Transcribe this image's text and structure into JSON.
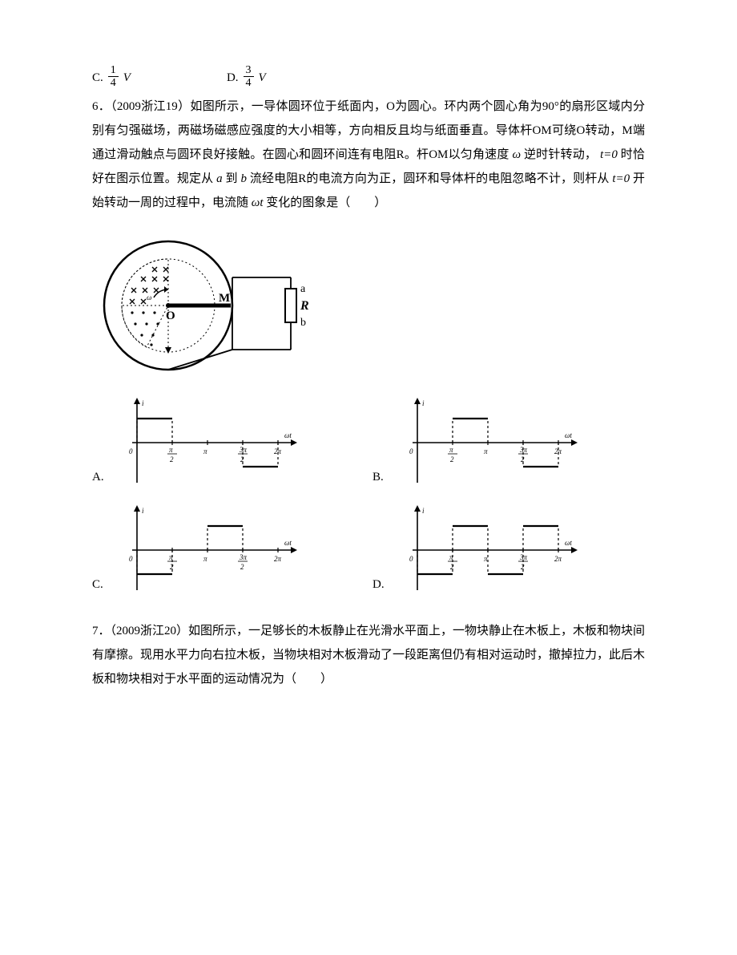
{
  "q5_options": {
    "C": {
      "label": "C.",
      "num": "1",
      "den": "4",
      "suffix": "V"
    },
    "D": {
      "label": "D.",
      "num": "3",
      "den": "4",
      "suffix": "V"
    }
  },
  "q6": {
    "heading": "6．（2009浙江19）如图所示，一导体圆环位于纸面内，O为圆心。环内两个圆心角为90°的扇形区域内分别有匀强磁场，两磁场磁感应强度的大小相等，方向相反且均与纸面垂直。导体杆OM可绕O转动，M端通过滑动触点与圆环良好接触。在圆心和圆环间连有电阻R。杆OM以匀角速度",
    "heading2": "逆时针转动，",
    "heading3": "时恰好在图示位置。规定从",
    "heading4": "到",
    "heading5": "流经电阻R的电流方向为正，圆环和导体杆的电阻忽略不计，则杆从",
    "heading6": "开始转动一周的过程中，电流随",
    "heading7": "变化的图象是（　　）",
    "omega": "ω",
    "t0": "t=0",
    "a": "a",
    "b": "b",
    "wt": "ωt",
    "circuit": {
      "ring_stroke": "#000000",
      "label_O": "O",
      "label_M": "M",
      "label_a": "a",
      "label_b": "b",
      "label_R": "R",
      "label_omega": "ω"
    },
    "graphs": {
      "axis_i": "i",
      "axis_wt": "ωt",
      "ticks": [
        "0",
        "π/2",
        "π",
        "3π/2",
        "2π"
      ],
      "A": {
        "label": "A.",
        "segments": [
          {
            "from": 0,
            "to": 1,
            "val": 1
          },
          {
            "from": 3,
            "to": 4,
            "val": -1
          }
        ]
      },
      "B": {
        "label": "B.",
        "segments": [
          {
            "from": 1,
            "to": 2,
            "val": 1
          },
          {
            "from": 3,
            "to": 4,
            "val": -1
          }
        ]
      },
      "C": {
        "label": "C.",
        "segments": [
          {
            "from": 0,
            "to": 1,
            "val": -1
          },
          {
            "from": 2,
            "to": 3,
            "val": 1
          }
        ]
      },
      "D": {
        "label": "D.",
        "segments": [
          {
            "from": 0,
            "to": 1,
            "val": -1
          },
          {
            "from": 1,
            "to": 2,
            "val": 1
          },
          {
            "from": 2,
            "to": 3,
            "val": -1
          },
          {
            "from": 3,
            "to": 4,
            "val": 1
          }
        ]
      }
    }
  },
  "q7": {
    "text": "7．（2009浙江20）如图所示，一足够长的木板静止在光滑水平面上，一物块静止在木板上，木板和物块间有摩擦。现用水平力向右拉木板，当物块相对木板滑动了一段距离但仍有相对运动时，撤掉拉力，此后木板和物块相对于水平面的运动情况为（　　）"
  }
}
